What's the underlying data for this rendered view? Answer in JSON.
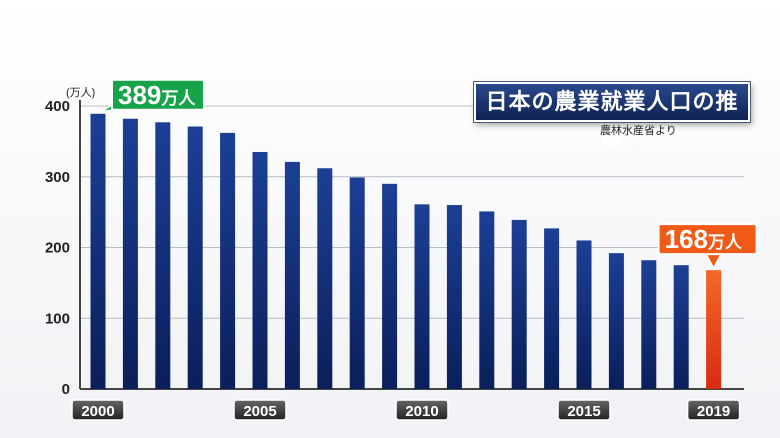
{
  "title": "日本の農業就業人口の推移",
  "source": "農林水産省より",
  "chart_data": {
    "type": "bar",
    "title": "日本の農業就業人口の推移",
    "unit": "(万人)",
    "x": [
      2000,
      2001,
      2002,
      2003,
      2004,
      2005,
      2006,
      2007,
      2008,
      2009,
      2010,
      2011,
      2012,
      2013,
      2014,
      2015,
      2016,
      2017,
      2018,
      2019
    ],
    "values": [
      389,
      382,
      377,
      371,
      362,
      335,
      321,
      312,
      299,
      290,
      261,
      260,
      251,
      239,
      227,
      210,
      192,
      182,
      175,
      168
    ],
    "xtick_labels": [
      "2000",
      "2005",
      "2010",
      "2015",
      "2019"
    ],
    "ylim": [
      0,
      400
    ],
    "yticks": [
      "0",
      "100",
      "200",
      "300",
      "400"
    ],
    "grid": true,
    "annotations": [
      {
        "year": 2000,
        "value_text": "389",
        "unit_text": "万人",
        "color": "#17a34a"
      },
      {
        "year": 2019,
        "value_text": "168",
        "unit_text": "万人",
        "color": "#f05a16"
      }
    ],
    "colors": {
      "bar": "#0d2a73",
      "highlight": "#e83a14"
    }
  }
}
